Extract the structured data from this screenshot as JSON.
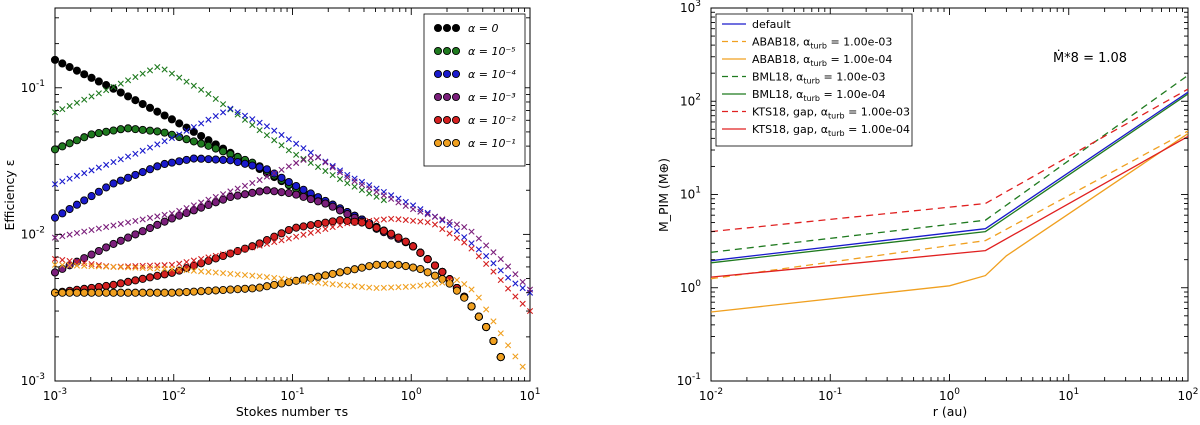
{
  "chart_data": [
    {
      "type": "line",
      "xscale": "log",
      "yscale": "log",
      "xlim": [
        0.001,
        10
      ],
      "ylim": [
        0.001,
        0.35
      ],
      "xlabel": "Stokes number τs",
      "ylabel": "Efficiency ε",
      "xticks": [
        {
          "v": 0.001,
          "base": "10",
          "exp": "-3"
        },
        {
          "v": 0.01,
          "base": "10",
          "exp": "-2"
        },
        {
          "v": 0.1,
          "base": "10",
          "exp": "-1"
        },
        {
          "v": 1,
          "base": "10",
          "exp": "0"
        },
        {
          "v": 10,
          "base": "10",
          "exp": "1"
        }
      ],
      "yticks": [
        {
          "v": 0.001,
          "base": "10",
          "exp": "-3"
        },
        {
          "v": 0.01,
          "base": "10",
          "exp": "-2"
        },
        {
          "v": 0.1,
          "base": "10",
          "exp": "-1"
        }
      ],
      "legend_position": "top-right",
      "legend": [
        {
          "label": "α = 0",
          "color": "#000000"
        },
        {
          "label": "α = 10⁻⁵",
          "color": "#1f7a1f"
        },
        {
          "label": "α = 10⁻⁴",
          "color": "#1a1acc"
        },
        {
          "label": "α = 10⁻³",
          "color": "#7b1f7b"
        },
        {
          "label": "α = 10⁻²",
          "color": "#d42020"
        },
        {
          "label": "α = 10⁻¹",
          "color": "#f0a020"
        }
      ],
      "series": [
        {
          "name": "α = 0",
          "color": "#000000",
          "marker": "circle",
          "points": [
            [
              0.001,
              0.155
            ],
            [
              0.003,
              0.1
            ],
            [
              0.01,
              0.06
            ],
            [
              0.03,
              0.036
            ],
            [
              0.1,
              0.021
            ],
            [
              0.3,
              0.014
            ],
            [
              1,
              0.0085
            ],
            [
              2,
              0.0052
            ],
            [
              3,
              0.0035
            ],
            [
              4.5,
              0.0022
            ],
            [
              5.8,
              0.0014
            ],
            [
              6.5,
              0.0011
            ]
          ]
        },
        {
          "name": "α = 10⁻⁵",
          "color": "#1f7a1f",
          "marker": "circle",
          "points": [
            [
              0.001,
              0.038
            ],
            [
              0.002,
              0.048
            ],
            [
              0.004,
              0.053
            ],
            [
              0.008,
              0.05
            ],
            [
              0.02,
              0.04
            ],
            [
              0.05,
              0.03
            ],
            [
              0.1,
              0.021
            ],
            [
              0.3,
              0.014
            ],
            [
              1,
              0.0085
            ],
            [
              2,
              0.0052
            ],
            [
              3,
              0.0035
            ],
            [
              4.5,
              0.0022
            ],
            [
              5.8,
              0.0014
            ],
            [
              6.5,
              0.0011
            ]
          ]
        },
        {
          "name": "α = 10⁻⁵ (crosses)",
          "color": "#1f7a1f",
          "marker": "x",
          "points": [
            [
              0.001,
              0.068
            ],
            [
              0.003,
              0.1
            ],
            [
              0.0075,
              0.14
            ],
            [
              0.02,
              0.09
            ],
            [
              0.05,
              0.053
            ],
            [
              0.1,
              0.036
            ],
            [
              0.3,
              0.022
            ],
            [
              0.6,
              0.017
            ]
          ]
        },
        {
          "name": "α = 10⁻⁴",
          "color": "#1a1acc",
          "marker": "circle",
          "points": [
            [
              0.001,
              0.013
            ],
            [
              0.003,
              0.022
            ],
            [
              0.008,
              0.03
            ],
            [
              0.015,
              0.033
            ],
            [
              0.03,
              0.032
            ],
            [
              0.06,
              0.028
            ],
            [
              0.1,
              0.022
            ],
            [
              0.3,
              0.014
            ],
            [
              1,
              0.0085
            ],
            [
              2,
              0.0052
            ],
            [
              3,
              0.0035
            ],
            [
              4.5,
              0.0022
            ],
            [
              5.8,
              0.0014
            ],
            [
              6.5,
              0.0011
            ]
          ]
        },
        {
          "name": "α = 10⁻⁴ (crosses)",
          "color": "#1a1acc",
          "marker": "x",
          "points": [
            [
              0.001,
              0.022
            ],
            [
              0.005,
              0.036
            ],
            [
              0.01,
              0.046
            ],
            [
              0.03,
              0.072
            ],
            [
              0.06,
              0.055
            ],
            [
              0.1,
              0.043
            ],
            [
              0.3,
              0.025
            ],
            [
              1,
              0.016
            ],
            [
              2,
              0.012
            ],
            [
              4,
              0.0075
            ],
            [
              7,
              0.0048
            ],
            [
              10,
              0.004
            ]
          ]
        },
        {
          "name": "α = 10⁻³",
          "color": "#7b1f7b",
          "marker": "circle",
          "points": [
            [
              0.001,
              0.0055
            ],
            [
              0.003,
              0.0085
            ],
            [
              0.01,
              0.013
            ],
            [
              0.03,
              0.018
            ],
            [
              0.06,
              0.02
            ],
            [
              0.1,
              0.019
            ],
            [
              0.2,
              0.016
            ],
            [
              0.5,
              0.011
            ],
            [
              1,
              0.0085
            ],
            [
              2,
              0.0052
            ],
            [
              3,
              0.0035
            ],
            [
              4.5,
              0.0022
            ],
            [
              5.8,
              0.0014
            ],
            [
              6.5,
              0.0011
            ]
          ]
        },
        {
          "name": "α = 10⁻³ (crosses)",
          "color": "#7b1f7b",
          "marker": "x",
          "points": [
            [
              0.001,
              0.0095
            ],
            [
              0.01,
              0.014
            ],
            [
              0.05,
              0.023
            ],
            [
              0.12,
              0.032
            ],
            [
              0.16,
              0.034
            ],
            [
              0.3,
              0.024
            ],
            [
              1,
              0.015
            ],
            [
              3,
              0.011
            ],
            [
              6,
              0.0065
            ],
            [
              10,
              0.0042
            ]
          ]
        },
        {
          "name": "α = 10⁻²",
          "color": "#d42020",
          "marker": "circle",
          "points": [
            [
              0.001,
              0.004
            ],
            [
              0.003,
              0.0045
            ],
            [
              0.01,
              0.0055
            ],
            [
              0.05,
              0.0085
            ],
            [
              0.1,
              0.011
            ],
            [
              0.25,
              0.0125
            ],
            [
              0.4,
              0.012
            ],
            [
              0.7,
              0.01
            ],
            [
              1,
              0.0085
            ],
            [
              2,
              0.0052
            ],
            [
              3,
              0.0035
            ],
            [
              4.5,
              0.0022
            ],
            [
              5.8,
              0.0014
            ],
            [
              6.5,
              0.0011
            ]
          ]
        },
        {
          "name": "α = 10⁻² (crosses)",
          "color": "#d42020",
          "marker": "x",
          "points": [
            [
              0.001,
              0.0068
            ],
            [
              0.003,
              0.006
            ],
            [
              0.01,
              0.0062
            ],
            [
              0.03,
              0.0075
            ],
            [
              0.1,
              0.0095
            ],
            [
              0.3,
              0.012
            ],
            [
              0.7,
              0.0128
            ],
            [
              1.5,
              0.012
            ],
            [
              3,
              0.0085
            ],
            [
              5,
              0.0055
            ],
            [
              7,
              0.004
            ],
            [
              10,
              0.003
            ]
          ]
        },
        {
          "name": "α = 10⁻¹",
          "color": "#f0a020",
          "marker": "circle",
          "points": [
            [
              0.001,
              0.004
            ],
            [
              0.01,
              0.004
            ],
            [
              0.05,
              0.0043
            ],
            [
              0.2,
              0.0053
            ],
            [
              0.5,
              0.0062
            ],
            [
              0.8,
              0.0062
            ],
            [
              1.2,
              0.0058
            ],
            [
              2,
              0.0048
            ],
            [
              3,
              0.0035
            ],
            [
              4.5,
              0.0022
            ],
            [
              5.8,
              0.0014
            ],
            [
              6.5,
              0.0011
            ]
          ]
        },
        {
          "name": "α = 10⁻¹ (crosses)",
          "color": "#f0a020",
          "marker": "x",
          "points": [
            [
              0.001,
              0.0062
            ],
            [
              0.01,
              0.0058
            ],
            [
              0.05,
              0.0052
            ],
            [
              0.2,
              0.0046
            ],
            [
              0.5,
              0.0043
            ],
            [
              1,
              0.0044
            ],
            [
              1.6,
              0.0046
            ],
            [
              2.5,
              0.0049
            ],
            [
              3.5,
              0.004
            ],
            [
              5,
              0.0025
            ],
            [
              7,
              0.0016
            ],
            [
              9,
              0.0012
            ]
          ]
        }
      ]
    },
    {
      "type": "line",
      "xscale": "log",
      "yscale": "log",
      "xlim": [
        0.01,
        100
      ],
      "ylim": [
        0.1,
        1000
      ],
      "xlabel": "r (au)",
      "ylabel": "M_PIM (M⊕)",
      "xticks": [
        {
          "v": 0.01,
          "base": "10",
          "exp": "-2"
        },
        {
          "v": 0.1,
          "base": "10",
          "exp": "-1"
        },
        {
          "v": 1,
          "base": "10",
          "exp": "0"
        },
        {
          "v": 10,
          "base": "10",
          "exp": "1"
        },
        {
          "v": 100,
          "base": "10",
          "exp": "2"
        }
      ],
      "yticks": [
        {
          "v": 0.1,
          "base": "10",
          "exp": "-1"
        },
        {
          "v": 1,
          "base": "10",
          "exp": "0"
        },
        {
          "v": 10,
          "base": "10",
          "exp": "1"
        },
        {
          "v": 100,
          "base": "10",
          "exp": "2"
        },
        {
          "v": 1000,
          "base": "10",
          "exp": "3"
        }
      ],
      "annotation": "Ṁ*8 = 1.08",
      "legend_position": "top-left",
      "series": [
        {
          "name": "default",
          "label_main": "default",
          "label_sub": "",
          "label_tail": "",
          "color": "#1a1acc",
          "dash": "solid",
          "points": [
            [
              0.01,
              1.95
            ],
            [
              2,
              4.3
            ],
            [
              100,
              125
            ]
          ]
        },
        {
          "name": "ABAB18, α_turb = 1.00e-03",
          "label_main": "ABAB18, α",
          "label_sub": "turb",
          "label_tail": " = 1.00e-03",
          "color": "#f0a020",
          "dash": "dashed",
          "points": [
            [
              0.01,
              1.25
            ],
            [
              2,
              3.2
            ],
            [
              100,
              48
            ]
          ]
        },
        {
          "name": "ABAB18, α_turb = 1.00e-04",
          "label_main": "ABAB18, α",
          "label_sub": "turb",
          "label_tail": " = 1.00e-04",
          "color": "#f0a020",
          "dash": "solid",
          "points": [
            [
              0.01,
              0.55
            ],
            [
              1,
              1.05
            ],
            [
              2,
              1.35
            ],
            [
              3,
              2.2
            ],
            [
              100,
              45
            ]
          ]
        },
        {
          "name": "BML18, α_turb = 1.00e-03",
          "label_main": "BML18, α",
          "label_sub": "turb",
          "label_tail": " = 1.00e-03",
          "color": "#1f7a1f",
          "dash": "dashed",
          "points": [
            [
              0.01,
              2.4
            ],
            [
              2,
              5.3
            ],
            [
              100,
              190
            ]
          ]
        },
        {
          "name": "BML18, α_turb = 1.00e-04",
          "label_main": "BML18, α",
          "label_sub": "turb",
          "label_tail": " = 1.00e-04",
          "color": "#1f7a1f",
          "dash": "solid",
          "points": [
            [
              0.01,
              1.85
            ],
            [
              2,
              4.0
            ],
            [
              100,
              120
            ]
          ]
        },
        {
          "name": "KTS18, gap, α_turb = 1.00e-03",
          "label_main": "KTS18, gap, α",
          "label_sub": "turb",
          "label_tail": " = 1.00e-03",
          "color": "#e02020",
          "dash": "dashed",
          "points": [
            [
              0.01,
              4.0
            ],
            [
              2,
              8.0
            ],
            [
              100,
              135
            ]
          ]
        },
        {
          "name": "KTS18, gap, α_turb = 1.00e-04",
          "label_main": "KTS18, gap, α",
          "label_sub": "turb",
          "label_tail": " = 1.00e-04",
          "color": "#e02020",
          "dash": "solid",
          "points": [
            [
              0.01,
              1.3
            ],
            [
              2,
              2.5
            ],
            [
              100,
              42
            ]
          ]
        }
      ]
    }
  ]
}
